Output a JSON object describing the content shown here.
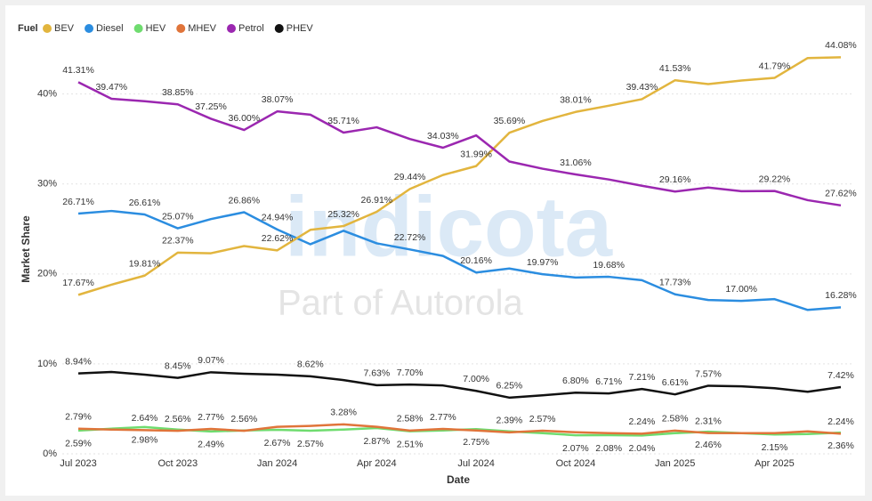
{
  "chart_data": {
    "type": "line",
    "legend_title": "Fuel",
    "x_label": "Date",
    "y_label": "Market Share",
    "watermark": "indicota",
    "watermark_subtitle": "Part of Autorola",
    "categories": [
      "Jul 2023",
      null,
      null,
      "Oct 2023",
      null,
      null,
      "Jan 2024",
      null,
      null,
      "Apr 2024",
      null,
      null,
      "Jul 2024",
      null,
      null,
      "Oct 2024",
      null,
      null,
      "Jan 2025",
      null,
      null,
      "Apr 2025",
      null,
      null
    ],
    "ylim": [
      0,
      46
    ],
    "yticks": [
      {
        "value": 0,
        "label": "0%"
      },
      {
        "value": 10,
        "label": "10%"
      },
      {
        "value": 20,
        "label": "20%"
      },
      {
        "value": 30,
        "label": "30%"
      },
      {
        "value": 40,
        "label": "40%"
      }
    ],
    "grid": true,
    "legend": "top-left",
    "series": [
      {
        "name": "BEV",
        "color": "#e2b53e",
        "values": [
          17.67,
          18.8,
          19.81,
          22.37,
          22.3,
          23.1,
          22.62,
          24.9,
          25.32,
          26.91,
          29.44,
          31.0,
          31.99,
          35.69,
          37.0,
          38.01,
          38.7,
          39.43,
          41.53,
          41.1,
          41.5,
          41.79,
          44.0,
          44.08
        ],
        "value_labels": [
          "17.67%",
          null,
          "19.81%",
          "22.37%",
          null,
          null,
          "22.62%",
          null,
          "25.32%",
          "26.91%",
          "29.44%",
          null,
          "31.99%",
          "35.69%",
          null,
          "38.01%",
          null,
          "39.43%",
          "41.53%",
          null,
          null,
          "41.79%",
          null,
          "44.08%"
        ]
      },
      {
        "name": "Diesel",
        "color": "#2b8de0",
        "values": [
          26.71,
          27.0,
          26.61,
          25.07,
          26.1,
          26.86,
          24.94,
          23.3,
          24.8,
          23.4,
          22.72,
          22.0,
          20.16,
          20.6,
          19.97,
          19.6,
          19.68,
          19.3,
          17.73,
          17.1,
          17.0,
          17.2,
          16.0,
          16.28
        ],
        "value_labels": [
          "26.71%",
          null,
          "26.61%",
          "25.07%",
          null,
          "26.86%",
          "24.94%",
          null,
          null,
          null,
          "22.72%",
          null,
          "20.16%",
          null,
          "19.97%",
          null,
          "19.68%",
          null,
          "17.73%",
          null,
          "17.00%",
          null,
          null,
          "16.28%"
        ]
      },
      {
        "name": "HEV",
        "color": "#6fdc6f",
        "values": [
          2.59,
          2.8,
          2.98,
          2.7,
          2.49,
          2.6,
          2.67,
          2.57,
          2.7,
          2.87,
          2.51,
          2.6,
          2.75,
          2.5,
          2.3,
          2.07,
          2.08,
          2.04,
          2.3,
          2.46,
          2.3,
          2.15,
          2.2,
          2.36
        ],
        "value_labels": [
          "2.59%",
          null,
          "2.98%",
          null,
          "2.49%",
          null,
          "2.67%",
          "2.57%",
          null,
          "2.87%",
          "2.51%",
          null,
          "2.75%",
          null,
          null,
          "2.07%",
          "2.08%",
          "2.04%",
          null,
          "2.46%",
          null,
          "2.15%",
          null,
          "2.36%"
        ]
      },
      {
        "name": "MHEV",
        "color": "#e0743a",
        "values": [
          2.79,
          2.7,
          2.64,
          2.56,
          2.77,
          2.56,
          3.0,
          3.1,
          3.28,
          3.0,
          2.58,
          2.77,
          2.6,
          2.39,
          2.57,
          2.4,
          2.3,
          2.24,
          2.58,
          2.31,
          2.3,
          2.3,
          2.5,
          2.24
        ],
        "value_labels": [
          "2.79%",
          null,
          "2.64%",
          "2.56%",
          "2.77%",
          "2.56%",
          null,
          null,
          "3.28%",
          null,
          "2.58%",
          "2.77%",
          null,
          "2.39%",
          "2.57%",
          null,
          null,
          "2.24%",
          "2.58%",
          "2.31%",
          null,
          null,
          null,
          "2.24%"
        ]
      },
      {
        "name": "Petrol",
        "color": "#9b27b0",
        "values": [
          41.31,
          39.47,
          39.2,
          38.85,
          37.25,
          36.0,
          38.07,
          37.7,
          35.71,
          36.3,
          35.0,
          34.03,
          35.4,
          32.5,
          31.7,
          31.06,
          30.5,
          29.8,
          29.16,
          29.6,
          29.2,
          29.22,
          28.2,
          27.62
        ],
        "value_labels": [
          "41.31%",
          "39.47%",
          null,
          "38.85%",
          "37.25%",
          "36.00%",
          "38.07%",
          null,
          "35.71%",
          null,
          null,
          "34.03%",
          null,
          null,
          null,
          "31.06%",
          null,
          null,
          "29.16%",
          null,
          null,
          "29.22%",
          null,
          "27.62%"
        ]
      },
      {
        "name": "PHEV",
        "color": "#111111",
        "values": [
          8.94,
          9.1,
          8.8,
          8.45,
          9.07,
          8.9,
          8.8,
          8.62,
          8.2,
          7.63,
          7.7,
          7.6,
          7.0,
          6.25,
          6.5,
          6.8,
          6.71,
          7.21,
          6.61,
          7.57,
          7.5,
          7.3,
          6.9,
          7.42
        ],
        "value_labels": [
          "8.94%",
          null,
          null,
          "8.45%",
          "9.07%",
          null,
          null,
          "8.62%",
          null,
          "7.63%",
          "7.70%",
          null,
          "7.00%",
          "6.25%",
          null,
          "6.80%",
          "6.71%",
          "7.21%",
          "6.61%",
          "7.57%",
          null,
          null,
          null,
          "7.42%"
        ]
      }
    ]
  }
}
